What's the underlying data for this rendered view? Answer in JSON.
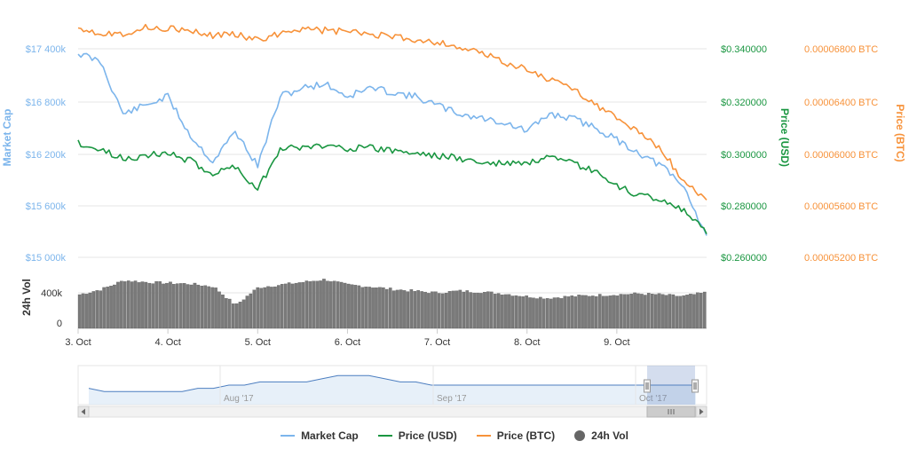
{
  "chart_data": {
    "type": "line",
    "title": "",
    "x_ticks": [
      "3. Oct",
      "4. Oct",
      "5. Oct",
      "6. Oct",
      "7. Oct",
      "8. Oct",
      "9. Oct"
    ],
    "y_axes": {
      "market_cap": {
        "label": "Market Cap",
        "ticks": [
          "$15 000k",
          "$15 600k",
          "$16 200k",
          "$16 800k",
          "$17 400k"
        ],
        "range": [
          15000,
          17400
        ],
        "unit": "k USD",
        "color": "#7cb5ec"
      },
      "price_usd": {
        "label": "Price (USD)",
        "ticks": [
          "$0.260000",
          "$0.280000",
          "$0.300000",
          "$0.320000",
          "$0.340000"
        ],
        "range": [
          0.26,
          0.34
        ],
        "color": "#1a9641"
      },
      "price_btc": {
        "label": "Price (BTC)",
        "ticks": [
          "0.00005200 BTC",
          "0.00005600 BTC",
          "0.00006000 BTC",
          "0.00006400 BTC",
          "0.00006800 BTC"
        ],
        "range": [
          5.2e-05,
          6.8e-05
        ],
        "color": "#f7923a"
      },
      "volume": {
        "label": "24h Vol",
        "ticks": [
          "0",
          "400k"
        ],
        "range": [
          0,
          700
        ],
        "unit": "k"
      }
    },
    "x_days": [
      0,
      0.25,
      0.5,
      0.75,
      1.0,
      1.25,
      1.5,
      1.75,
      2.0,
      2.25,
      2.5,
      2.75,
      3.0,
      3.25,
      3.5,
      3.75,
      4.0,
      4.25,
      4.5,
      4.75,
      5.0,
      5.25,
      5.5,
      5.75,
      6.0,
      6.25,
      6.5,
      6.75,
      7.0
    ],
    "series": [
      {
        "name": "Market Cap",
        "axis": "market_cap",
        "color": "#7cb5ec",
        "values": [
          17350,
          17250,
          16650,
          16750,
          16850,
          16400,
          16100,
          16450,
          16050,
          16850,
          16950,
          17000,
          16850,
          16950,
          16900,
          16850,
          16750,
          16650,
          16600,
          16550,
          16450,
          16650,
          16600,
          16500,
          16350,
          16200,
          16050,
          15800,
          15250
        ]
      },
      {
        "name": "Price (USD)",
        "axis": "price_usd",
        "color": "#1a9641",
        "values": [
          0.304,
          0.301,
          0.298,
          0.299,
          0.3,
          0.297,
          0.292,
          0.295,
          0.286,
          0.302,
          0.302,
          0.303,
          0.302,
          0.302,
          0.301,
          0.3,
          0.299,
          0.298,
          0.296,
          0.296,
          0.296,
          0.298,
          0.296,
          0.293,
          0.287,
          0.284,
          0.282,
          0.278,
          0.269
        ]
      },
      {
        "name": "Price (BTC)",
        "axis": "price_btc",
        "color": "#f7923a",
        "values": [
          6.97e-05,
          6.92e-05,
          6.92e-05,
          6.96e-05,
          6.96e-05,
          6.93e-05,
          6.9e-05,
          6.92e-05,
          6.86e-05,
          6.92e-05,
          6.96e-05,
          6.94e-05,
          6.93e-05,
          6.91e-05,
          6.89e-05,
          6.87e-05,
          6.85e-05,
          6.81e-05,
          6.76e-05,
          6.7e-05,
          6.64e-05,
          6.56e-05,
          6.5e-05,
          6.38e-05,
          6.26e-05,
          6.16e-05,
          6.02e-05,
          5.78e-05,
          5.64e-05
        ]
      },
      {
        "name": "24h Vol",
        "axis": "volume",
        "color": "#666666",
        "type": "column",
        "values": [
          380,
          440,
          540,
          520,
          510,
          500,
          470,
          260,
          460,
          490,
          520,
          550,
          490,
          470,
          440,
          420,
          400,
          420,
          410,
          390,
          360,
          340,
          360,
          370,
          380,
          390,
          380,
          360,
          400
        ]
      }
    ],
    "navigator": {
      "labels": [
        "Aug '17",
        "Sep '17",
        "Oct '17"
      ],
      "values": [
        10,
        9,
        9,
        9,
        9,
        9,
        9,
        10,
        10,
        11,
        11,
        12,
        12,
        12,
        12,
        13,
        14,
        14,
        14,
        13,
        12,
        12,
        11,
        11,
        11,
        11,
        11,
        11,
        11,
        11,
        11,
        11,
        11,
        11,
        11,
        11,
        11,
        11,
        11,
        11
      ]
    },
    "legend": {
      "placement": "bottom-center",
      "items": [
        {
          "label": "Market Cap",
          "marker": "line",
          "color": "#7cb5ec"
        },
        {
          "label": "Price (USD)",
          "marker": "line",
          "color": "#1a9641"
        },
        {
          "label": "Price (BTC)",
          "marker": "line",
          "color": "#f7923a"
        },
        {
          "label": "24h Vol",
          "marker": "dot",
          "color": "#666666"
        }
      ]
    },
    "grid": true
  }
}
